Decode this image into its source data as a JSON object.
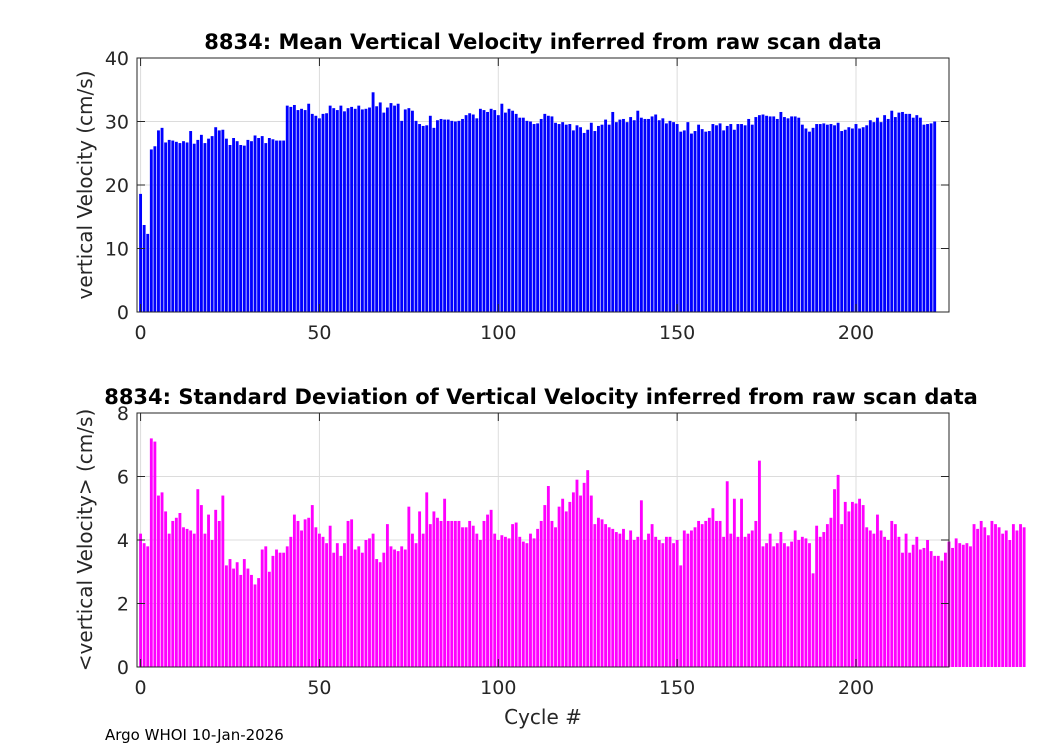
{
  "figure": {
    "footer": "Argo WHOI 10-Jan-2026",
    "bar_fill_fraction": 0.8
  },
  "chart_data": [
    {
      "type": "bar",
      "title": "8834: Mean Vertical Velocity inferred from raw scan data",
      "xlabel": "",
      "ylabel": "vertical Velocity (cm/s)",
      "xlim": [
        -1,
        226
      ],
      "ylim": [
        0,
        40
      ],
      "xticks": [
        0,
        50,
        100,
        150,
        200
      ],
      "yticks": [
        0,
        10,
        20,
        30,
        40
      ],
      "grid": true,
      "color": "#0000ff",
      "x_start": 0,
      "values": [
        18.6,
        13.7,
        12.3,
        25.6,
        26.1,
        28.6,
        29.0,
        26.7,
        27.1,
        27.0,
        26.8,
        26.6,
        26.9,
        26.7,
        28.5,
        26.5,
        27.1,
        27.9,
        26.6,
        27.3,
        27.7,
        29.1,
        28.6,
        28.7,
        27.3,
        26.3,
        27.4,
        26.9,
        26.3,
        26.2,
        27.1,
        26.9,
        27.8,
        27.4,
        27.7,
        26.6,
        27.4,
        27.2,
        27.0,
        27.0,
        27.0,
        32.5,
        32.3,
        32.6,
        31.8,
        32.0,
        31.8,
        32.8,
        31.2,
        30.9,
        30.5,
        31.2,
        31.3,
        32.5,
        32.1,
        31.8,
        32.5,
        31.6,
        32.1,
        32.3,
        32.0,
        32.5,
        31.9,
        32.0,
        32.2,
        34.6,
        32.4,
        33.0,
        31.4,
        32.2,
        32.9,
        32.5,
        32.8,
        30.1,
        31.9,
        32.1,
        31.7,
        30.1,
        29.6,
        29.3,
        29.4,
        30.9,
        29.0,
        30.2,
        30.4,
        30.3,
        30.3,
        30.1,
        30.0,
        30.1,
        30.4,
        31.0,
        31.3,
        31.1,
        30.5,
        32.0,
        31.8,
        31.5,
        32.0,
        31.8,
        31.0,
        32.8,
        31.4,
        32.0,
        31.7,
        31.2,
        30.6,
        30.6,
        30.1,
        30.0,
        29.6,
        29.7,
        30.4,
        31.2,
        30.9,
        30.8,
        29.8,
        29.6,
        29.9,
        29.5,
        29.6,
        28.6,
        29.4,
        29.1,
        28.2,
        28.7,
        29.8,
        28.5,
        29.3,
        29.5,
        30.3,
        29.5,
        31.5,
        29.9,
        30.3,
        30.4,
        29.9,
        30.7,
        30.2,
        31.7,
        30.6,
        30.4,
        30.4,
        30.8,
        31.1,
        30.2,
        30.5,
        29.7,
        30.1,
        29.9,
        29.6,
        28.4,
        28.6,
        29.9,
        28.1,
        28.5,
        29.5,
        28.8,
        28.4,
        28.5,
        29.6,
        29.4,
        29.7,
        28.6,
        29.3,
        29.6,
        28.7,
        29.6,
        29.6,
        29.4,
        30.4,
        29.5,
        30.7,
        31.0,
        31.1,
        30.9,
        30.8,
        30.8,
        30.4,
        31.5,
        30.7,
        30.5,
        30.8,
        30.8,
        30.6,
        29.5,
        28.9,
        28.4,
        29.0,
        29.6,
        29.6,
        29.7,
        29.5,
        29.6,
        29.4,
        29.8,
        28.5,
        28.7,
        29.1,
        28.9,
        29.6,
        28.9,
        29.1,
        29.4,
        30.2,
        29.9,
        30.6,
        29.9,
        31.0,
        30.4,
        31.7,
        30.7,
        31.4,
        31.5,
        31.2,
        31.2,
        30.6,
        31.0,
        30.6,
        29.5,
        29.6,
        29.7,
        30.0
      ]
    },
    {
      "type": "bar",
      "title": "8834: Standard Deviation of Vertical Velocity inferred from raw scan data",
      "xlabel": "Cycle #",
      "ylabel": "<vertical Velocity> (cm/s)",
      "xlim": [
        -1,
        226
      ],
      "ylim": [
        0,
        8
      ],
      "xticks": [
        0,
        50,
        100,
        150,
        200
      ],
      "yticks": [
        0,
        2,
        4,
        6,
        8
      ],
      "grid": true,
      "color": "#ff00ff",
      "x_start": 0,
      "values": [
        4.2,
        3.9,
        3.8,
        7.2,
        7.1,
        5.4,
        5.5,
        4.9,
        4.2,
        4.6,
        4.7,
        4.85,
        4.4,
        4.35,
        4.3,
        4.2,
        5.6,
        5.1,
        4.2,
        4.8,
        4.0,
        4.95,
        4.6,
        5.4,
        3.2,
        3.4,
        3.1,
        3.3,
        2.9,
        3.4,
        3.1,
        2.9,
        2.6,
        2.8,
        3.7,
        3.8,
        3.0,
        3.5,
        3.7,
        3.6,
        3.6,
        3.8,
        4.1,
        4.8,
        4.6,
        4.3,
        4.65,
        4.7,
        5.1,
        4.4,
        4.2,
        4.1,
        3.9,
        4.45,
        3.6,
        3.9,
        3.5,
        3.9,
        4.6,
        4.65,
        3.7,
        3.8,
        3.6,
        4.0,
        4.05,
        4.2,
        3.4,
        3.3,
        3.6,
        4.5,
        3.8,
        3.7,
        3.65,
        3.8,
        3.7,
        5.05,
        4.2,
        3.9,
        4.9,
        4.2,
        5.5,
        4.5,
        4.9,
        4.7,
        4.6,
        5.3,
        4.6,
        4.6,
        4.6,
        4.6,
        4.4,
        4.4,
        4.6,
        4.45,
        4.2,
        4.0,
        4.6,
        4.8,
        4.95,
        4.2,
        4.0,
        4.15,
        4.1,
        4.05,
        4.5,
        4.55,
        4.1,
        3.95,
        3.9,
        4.2,
        4.05,
        4.35,
        4.6,
        5.1,
        5.7,
        4.6,
        4.4,
        5.05,
        5.3,
        4.9,
        5.2,
        5.5,
        5.9,
        5.4,
        5.8,
        6.2,
        5.4,
        4.5,
        4.7,
        4.65,
        4.5,
        4.4,
        4.35,
        4.25,
        4.2,
        4.35,
        4.0,
        4.3,
        4.0,
        4.1,
        5.25,
        4.0,
        4.2,
        4.5,
        4.1,
        4.0,
        3.9,
        4.1,
        4.1,
        3.9,
        4.0,
        3.2,
        4.3,
        4.2,
        4.3,
        4.4,
        4.6,
        4.5,
        4.6,
        4.7,
        5.0,
        4.6,
        4.6,
        4.1,
        5.85,
        4.2,
        5.3,
        4.1,
        5.3,
        4.1,
        4.2,
        4.3,
        4.6,
        6.5,
        3.8,
        3.9,
        4.2,
        3.8,
        3.9,
        4.25,
        3.9,
        3.8,
        3.95,
        4.3,
        4.0,
        4.1,
        4.05,
        3.9,
        2.95,
        4.45,
        4.1,
        4.25,
        4.5,
        4.7,
        5.6,
        6.05,
        4.5,
        5.2,
        4.9,
        5.2,
        5.15,
        5.3,
        5.1,
        4.4,
        4.3,
        4.2,
        4.8,
        4.3,
        4.1,
        4.0,
        4.6,
        4.5,
        4.1,
        3.6,
        4.2,
        3.6,
        3.85,
        4.1,
        3.7,
        3.75,
        4.0,
        3.65,
        3.5,
        3.5,
        3.35,
        3.6,
        3.95,
        3.75,
        4.05,
        3.9,
        3.85,
        3.9,
        3.8,
        4.5,
        4.35,
        4.6,
        4.4,
        4.15,
        4.6,
        4.5,
        4.4,
        4.2,
        4.3,
        4.0,
        4.5,
        4.3,
        4.5,
        4.4
      ]
    }
  ]
}
